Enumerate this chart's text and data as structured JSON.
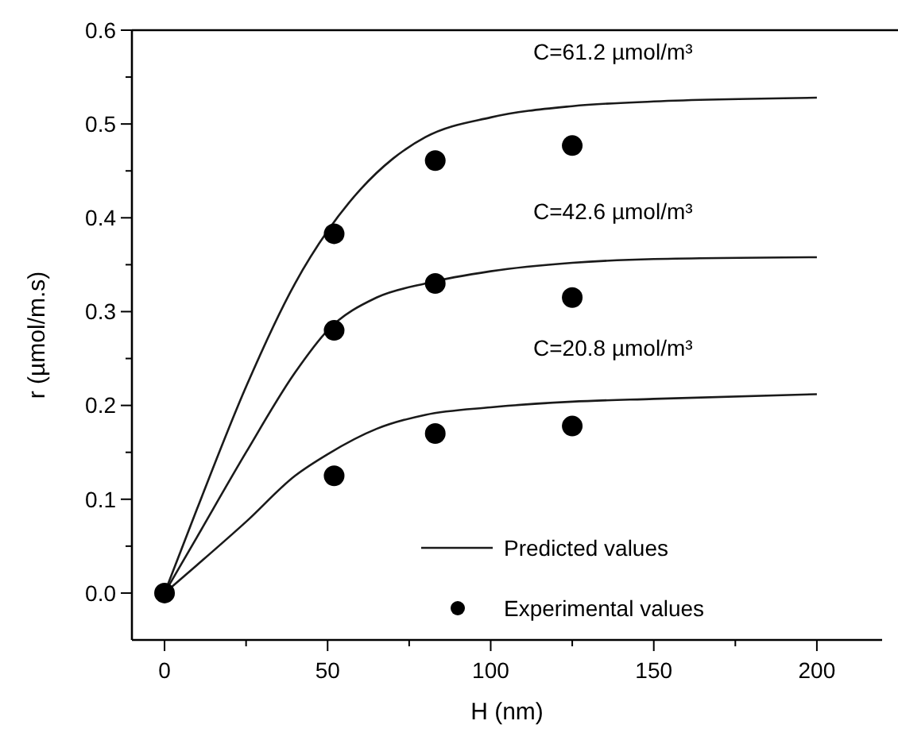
{
  "chart_data": {
    "type": "line",
    "xlabel": "H (nm)",
    "ylabel": "r (µmol/m.s)",
    "xlim": [
      -10,
      220
    ],
    "ylim": [
      -0.05,
      0.6
    ],
    "xticks": [
      0,
      {
        "value": 25,
        "label": null
      },
      50,
      {
        "value": 75,
        "label": null
      },
      100,
      {
        "value": 125,
        "label": null
      },
      150,
      {
        "value": 175,
        "label": null
      },
      200
    ],
    "yticks": [
      {
        "value": 0,
        "label": "0.0"
      },
      {
        "value": 0.05,
        "label": null
      },
      0.1,
      {
        "value": 0.15,
        "label": null
      },
      0.2,
      {
        "value": 0.25,
        "label": null
      },
      0.3,
      {
        "value": 0.35,
        "label": null
      },
      0.4,
      {
        "value": 0.45,
        "label": null
      },
      0.5,
      {
        "value": 0.55,
        "label": null
      },
      0.6
    ],
    "grid": false,
    "legend": "bottom right",
    "series": [
      {
        "name": "Predicted values",
        "marker": "none",
        "color": "#1a1a1a",
        "x": [
          0,
          10,
          25,
          40,
          50,
          60,
          70,
          80,
          100,
          125,
          150,
          200
        ],
        "values": [
          0,
          0.09,
          0.22,
          0.33,
          0.386,
          0.43,
          0.463,
          0.486,
          0.507,
          0.519,
          0.524,
          0.528
        ]
      },
      {
        "marker": "none",
        "color": "#1a1a1a",
        "x": [
          0,
          10,
          25,
          40,
          50,
          65,
          80,
          100,
          125,
          150,
          200
        ],
        "values": [
          0,
          0.06,
          0.15,
          0.235,
          0.28,
          0.315,
          0.33,
          0.343,
          0.352,
          0.356,
          0.358
        ]
      },
      {
        "marker": "none",
        "color": "#1a1a1a",
        "x": [
          0,
          10,
          25,
          40,
          50,
          65,
          80,
          100,
          125,
          150,
          200
        ],
        "values": [
          0,
          0.03,
          0.076,
          0.125,
          0.148,
          0.175,
          0.19,
          0.198,
          0.204,
          0.207,
          0.212
        ]
      },
      {
        "name": "Experimental values",
        "type": "scatter",
        "marker": "circle",
        "color": "#000000",
        "x": [
          0,
          52,
          83,
          125,
          52,
          83,
          125,
          52,
          83,
          125
        ],
        "values": [
          0,
          0.383,
          0.461,
          0.477,
          0.28,
          0.33,
          0.315,
          0.125,
          0.17,
          0.178
        ]
      }
    ],
    "annotations": [
      "C=61.2 µmol/m³",
      "C=42.6 µmol/m³",
      "C=20.8 µmol/m³"
    ]
  }
}
